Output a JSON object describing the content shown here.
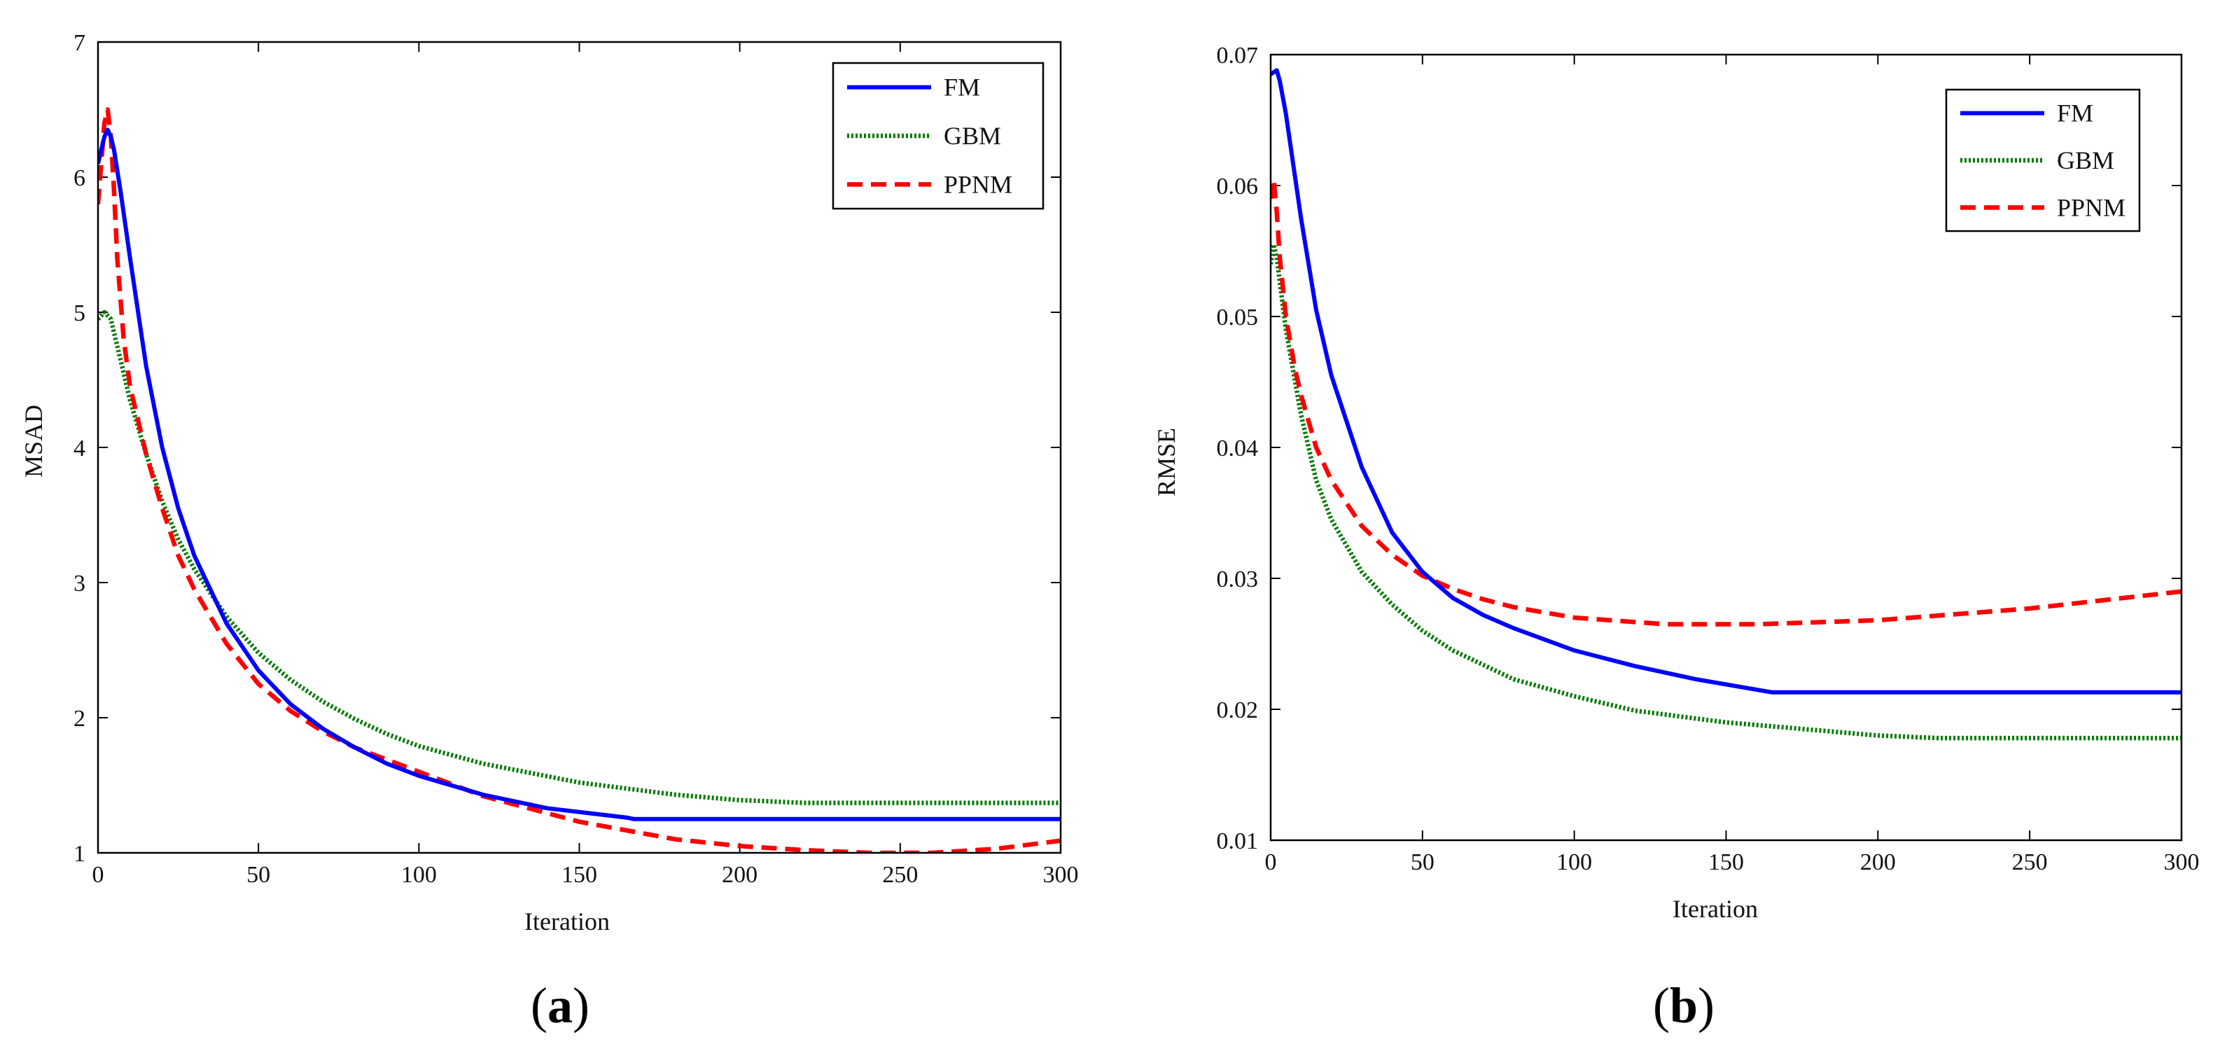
{
  "chart_data": [
    {
      "type": "line",
      "panel": "a",
      "panel_label": {
        "open": "(",
        "letter": "a",
        "close": ")"
      },
      "xlabel": "Iteration",
      "ylabel": "MSAD",
      "xlim": [
        0,
        300
      ],
      "ylim": [
        1,
        7
      ],
      "xticks": [
        0,
        50,
        100,
        150,
        200,
        250,
        300
      ],
      "yticks": [
        1,
        2,
        3,
        4,
        5,
        6,
        7
      ],
      "legend_position": "top-right",
      "series": [
        {
          "name": "FM",
          "color": "#0000ff",
          "style": "solid",
          "x": [
            0,
            2,
            3,
            4,
            5,
            7,
            10,
            15,
            20,
            25,
            30,
            40,
            50,
            60,
            70,
            80,
            90,
            100,
            120,
            140,
            165,
            167,
            200,
            250,
            300
          ],
          "y": [
            6.1,
            6.3,
            6.35,
            6.3,
            6.2,
            5.9,
            5.4,
            4.6,
            4.0,
            3.55,
            3.2,
            2.7,
            2.35,
            2.1,
            1.92,
            1.78,
            1.66,
            1.57,
            1.43,
            1.33,
            1.26,
            1.25,
            1.25,
            1.25,
            1.25
          ]
        },
        {
          "name": "GBM",
          "color": "#007a00",
          "style": "dotted",
          "x": [
            0,
            2,
            4,
            5,
            7,
            10,
            15,
            20,
            25,
            30,
            40,
            50,
            60,
            70,
            80,
            90,
            100,
            120,
            150,
            180,
            200,
            220,
            250,
            300
          ],
          "y": [
            4.95,
            5.0,
            4.95,
            4.85,
            4.65,
            4.35,
            3.95,
            3.6,
            3.32,
            3.1,
            2.75,
            2.48,
            2.28,
            2.12,
            1.99,
            1.88,
            1.79,
            1.66,
            1.52,
            1.43,
            1.39,
            1.37,
            1.37,
            1.37
          ]
        },
        {
          "name": "PPNM",
          "color": "#ff0000",
          "style": "dashed",
          "x": [
            0,
            1,
            2,
            3,
            4,
            5,
            6,
            8,
            10,
            15,
            20,
            25,
            30,
            40,
            50,
            60,
            70,
            80,
            100,
            120,
            150,
            180,
            200,
            220,
            240,
            260,
            280,
            300
          ],
          "y": [
            5.8,
            6.1,
            6.4,
            6.5,
            6.3,
            5.9,
            5.4,
            4.8,
            4.45,
            3.95,
            3.55,
            3.2,
            2.95,
            2.55,
            2.25,
            2.05,
            1.9,
            1.78,
            1.6,
            1.42,
            1.23,
            1.1,
            1.05,
            1.02,
            1.0,
            1.0,
            1.03,
            1.09
          ]
        }
      ]
    },
    {
      "type": "line",
      "panel": "b",
      "panel_label": {
        "open": "(",
        "letter": "b",
        "close": ")"
      },
      "xlabel": "Iteration",
      "ylabel": "RMSE",
      "xlim": [
        0,
        300
      ],
      "ylim": [
        0.01,
        0.07
      ],
      "xticks": [
        0,
        50,
        100,
        150,
        200,
        250,
        300
      ],
      "yticks": [
        0.01,
        0.02,
        0.03,
        0.04,
        0.05,
        0.06,
        0.07
      ],
      "ytick_labels": [
        "0.01",
        "0.02",
        "0.03",
        "0.04",
        "0.05",
        "0.06",
        "0.07"
      ],
      "legend_position": "top-right",
      "series": [
        {
          "name": "FM",
          "color": "#0000ff",
          "style": "solid",
          "x": [
            0,
            2,
            3,
            5,
            10,
            15,
            20,
            30,
            40,
            50,
            60,
            70,
            80,
            100,
            120,
            140,
            165,
            200,
            250,
            300
          ],
          "y": [
            0.0685,
            0.0688,
            0.068,
            0.0655,
            0.0575,
            0.0505,
            0.0455,
            0.0385,
            0.0335,
            0.0305,
            0.0285,
            0.0272,
            0.0262,
            0.0245,
            0.0233,
            0.0223,
            0.0213,
            0.0213,
            0.0213,
            0.0213
          ]
        },
        {
          "name": "GBM",
          "color": "#007a00",
          "style": "dotted",
          "x": [
            0,
            1,
            2,
            5,
            10,
            15,
            20,
            30,
            40,
            50,
            60,
            80,
            100,
            120,
            150,
            180,
            200,
            220,
            250,
            300
          ],
          "y": [
            0.054,
            0.0555,
            0.0545,
            0.049,
            0.0425,
            0.0375,
            0.0345,
            0.0305,
            0.028,
            0.026,
            0.0245,
            0.0223,
            0.021,
            0.0199,
            0.019,
            0.0184,
            0.018,
            0.0178,
            0.0178,
            0.0178
          ]
        },
        {
          "name": "PPNM",
          "color": "#ff0000",
          "style": "dashed",
          "x": [
            0,
            1,
            2,
            3,
            5,
            8,
            10,
            15,
            20,
            30,
            40,
            50,
            60,
            70,
            80,
            100,
            130,
            160,
            200,
            250,
            300
          ],
          "y": [
            0.059,
            0.0605,
            0.058,
            0.0545,
            0.05,
            0.046,
            0.044,
            0.04,
            0.0375,
            0.034,
            0.0318,
            0.0302,
            0.0292,
            0.0284,
            0.0278,
            0.027,
            0.0265,
            0.0265,
            0.0268,
            0.0277,
            0.029
          ]
        }
      ]
    }
  ]
}
